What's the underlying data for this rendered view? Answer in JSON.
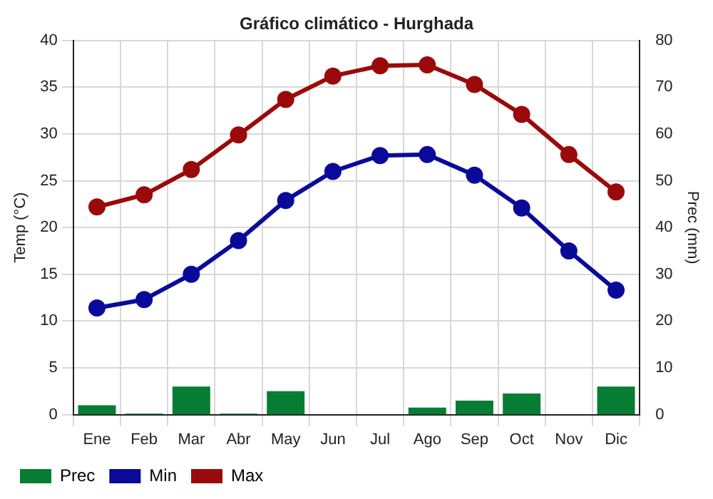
{
  "chart_data": {
    "type": "line",
    "title": "Gráfico climático - Hurghada",
    "ylabel": "Temp (°C)",
    "y2label": "Prec (mm)",
    "categories": [
      "Ene",
      "Feb",
      "Mar",
      "Abr",
      "May",
      "Jun",
      "Jul",
      "Ago",
      "Sep",
      "Oct",
      "Nov",
      "Dic"
    ],
    "series": [
      {
        "name": "Prec",
        "type": "bar",
        "axis": "y2",
        "color": "#067d32",
        "values": [
          2,
          0.2,
          6,
          0.2,
          5,
          0,
          0,
          1.5,
          3,
          4.5,
          0,
          6
        ]
      },
      {
        "name": "Min",
        "color": "#0a0a9a",
        "values": [
          11.4,
          12.3,
          15,
          18.6,
          22.9,
          26,
          27.7,
          27.8,
          25.6,
          22.1,
          17.5,
          13.3
        ]
      },
      {
        "name": "Max",
        "color": "#9b0a0a",
        "values": [
          22.2,
          23.5,
          26.2,
          29.9,
          33.7,
          36.2,
          37.3,
          37.4,
          35.3,
          32.1,
          27.8,
          23.8
        ]
      }
    ],
    "ylim": [
      0,
      40
    ],
    "yticks": [
      0,
      5,
      10,
      15,
      20,
      25,
      30,
      35,
      40
    ],
    "y2lim": [
      0,
      80
    ],
    "y2ticks": [
      0,
      10,
      20,
      30,
      40,
      50,
      60,
      70,
      80
    ],
    "grid": true,
    "legend": "bottom left",
    "marker": "circle",
    "line_style": "solid"
  }
}
